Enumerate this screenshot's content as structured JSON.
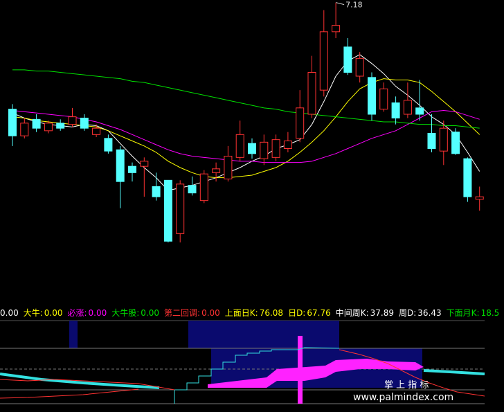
{
  "chart_data": {
    "type": "candlestick",
    "ylim": [
      4.8,
      7.2
    ],
    "up_color": "#ff3232",
    "down_color": "#54ffff",
    "candles": [
      {
        "open": 6.34,
        "close": 6.13,
        "high": 6.38,
        "low": 6.05
      },
      {
        "open": 6.13,
        "close": 6.23,
        "high": 6.27,
        "low": 6.11
      },
      {
        "open": 6.26,
        "close": 6.19,
        "high": 6.3,
        "low": 6.16
      },
      {
        "open": 6.17,
        "close": 6.23,
        "high": 6.25,
        "low": 6.15
      },
      {
        "open": 6.23,
        "close": 6.19,
        "high": 6.26,
        "low": 6.17
      },
      {
        "open": 6.22,
        "close": 6.28,
        "high": 6.35,
        "low": 6.2
      },
      {
        "open": 6.27,
        "close": 6.19,
        "high": 6.3,
        "low": 6.17
      },
      {
        "open": 6.14,
        "close": 6.19,
        "high": 6.22,
        "low": 6.12
      },
      {
        "open": 6.11,
        "close": 6.01,
        "high": 6.14,
        "low": 5.99
      },
      {
        "open": 6.02,
        "close": 5.77,
        "high": 6.05,
        "low": 5.56
      },
      {
        "open": 5.89,
        "close": 5.84,
        "high": 5.92,
        "low": 5.77
      },
      {
        "open": 5.89,
        "close": 5.93,
        "high": 5.96,
        "low": 5.65
      },
      {
        "open": 5.73,
        "close": 5.65,
        "high": 5.84,
        "low": 5.62
      },
      {
        "open": 5.78,
        "close": 5.3,
        "high": 5.78,
        "low": 5.29
      },
      {
        "open": 5.36,
        "close": 5.75,
        "high": 5.78,
        "low": 5.29
      },
      {
        "open": 5.74,
        "close": 5.68,
        "high": 5.81,
        "low": 5.66
      },
      {
        "open": 5.62,
        "close": 5.83,
        "high": 5.86,
        "low": 5.6
      },
      {
        "open": 5.84,
        "close": 5.87,
        "high": 5.92,
        "low": 5.77
      },
      {
        "open": 5.79,
        "close": 5.97,
        "high": 6.05,
        "low": 5.77
      },
      {
        "open": 5.96,
        "close": 6.14,
        "high": 6.25,
        "low": 5.93
      },
      {
        "open": 6.07,
        "close": 5.99,
        "high": 6.11,
        "low": 5.95
      },
      {
        "open": 5.95,
        "close": 6.08,
        "high": 6.14,
        "low": 5.9
      },
      {
        "open": 5.96,
        "close": 6.1,
        "high": 6.14,
        "low": 5.93
      },
      {
        "open": 6.03,
        "close": 6.09,
        "high": 6.16,
        "low": 6.0
      },
      {
        "open": 6.11,
        "close": 6.35,
        "high": 6.49,
        "low": 6.08
      },
      {
        "open": 6.3,
        "close": 6.63,
        "high": 6.76,
        "low": 6.27
      },
      {
        "open": 6.49,
        "close": 6.95,
        "high": 7.12,
        "low": 6.44
      },
      {
        "open": 6.95,
        "close": 7.0,
        "high": 7.18,
        "low": 6.9
      },
      {
        "open": 6.83,
        "close": 6.63,
        "high": 6.9,
        "low": 6.61
      },
      {
        "open": 6.6,
        "close": 6.74,
        "high": 6.79,
        "low": 6.55
      },
      {
        "open": 6.59,
        "close": 6.3,
        "high": 6.63,
        "low": 6.25
      },
      {
        "open": 6.34,
        "close": 6.5,
        "high": 6.55,
        "low": 6.32
      },
      {
        "open": 6.39,
        "close": 6.27,
        "high": 6.44,
        "low": 6.22
      },
      {
        "open": 6.3,
        "close": 6.41,
        "high": 6.55,
        "low": 6.27
      },
      {
        "open": 6.35,
        "close": 6.3,
        "high": 6.57,
        "low": 6.25
      },
      {
        "open": 6.15,
        "close": 6.03,
        "high": 6.3,
        "low": 6.0
      },
      {
        "open": 6.01,
        "close": 6.19,
        "high": 6.25,
        "low": 5.9
      },
      {
        "open": 6.16,
        "close": 5.99,
        "high": 6.19,
        "low": 5.98
      },
      {
        "open": 5.95,
        "close": 5.65,
        "high": 5.96,
        "low": 5.61
      },
      {
        "open": 5.63,
        "close": 5.65,
        "high": 5.73,
        "low": 5.54
      }
    ],
    "moving_averages": [
      {
        "color": "#ffffff",
        "values": [
          6.31,
          6.27,
          6.24,
          6.22,
          6.21,
          6.2,
          6.22,
          6.21,
          6.17,
          6.07,
          5.97,
          5.88,
          5.8,
          5.7,
          5.72,
          5.74,
          5.77,
          5.8,
          5.84,
          5.88,
          5.93,
          5.97,
          6.03,
          6.06,
          6.1,
          6.22,
          6.4,
          6.6,
          6.72,
          6.77,
          6.7,
          6.62,
          6.52,
          6.45,
          6.37,
          6.28,
          6.22,
          6.14,
          6.0,
          5.85
        ]
      },
      {
        "color": "#ffff00",
        "values": [
          6.28,
          6.27,
          6.25,
          6.24,
          6.23,
          6.22,
          6.21,
          6.2,
          6.17,
          6.13,
          6.09,
          6.05,
          6.0,
          5.93,
          5.88,
          5.84,
          5.81,
          5.8,
          5.8,
          5.81,
          5.82,
          5.85,
          5.88,
          5.93,
          6.0,
          6.08,
          6.17,
          6.28,
          6.4,
          6.5,
          6.55,
          6.58,
          6.57,
          6.57,
          6.55,
          6.48,
          6.4,
          6.32,
          6.23,
          6.14
        ]
      },
      {
        "color": "#ff00ff",
        "values": [
          6.33,
          6.32,
          6.31,
          6.3,
          6.29,
          6.28,
          6.26,
          6.24,
          6.21,
          6.18,
          6.14,
          6.1,
          6.06,
          6.02,
          5.99,
          5.97,
          5.96,
          5.95,
          5.94,
          5.93,
          5.93,
          5.92,
          5.92,
          5.92,
          5.92,
          5.93,
          5.96,
          5.99,
          6.03,
          6.07,
          6.11,
          6.14,
          6.17,
          6.22,
          6.27,
          6.32,
          6.33,
          6.32,
          6.29,
          6.26
        ]
      },
      {
        "color": "#00e000",
        "values": [
          6.65,
          6.65,
          6.64,
          6.64,
          6.63,
          6.62,
          6.61,
          6.6,
          6.59,
          6.58,
          6.56,
          6.55,
          6.53,
          6.51,
          6.49,
          6.47,
          6.45,
          6.43,
          6.41,
          6.39,
          6.37,
          6.35,
          6.34,
          6.32,
          6.31,
          6.3,
          6.29,
          6.28,
          6.27,
          6.26,
          6.25,
          6.24,
          6.24,
          6.23,
          6.22,
          6.22,
          6.21,
          6.21,
          6.2,
          6.19
        ]
      }
    ],
    "indicator_legend": [
      {
        "value": "0.00",
        "color": "#ffffff"
      },
      {
        "label": "大牛:",
        "value": "0.00",
        "color": "#ffff00"
      },
      {
        "label": "必涨:",
        "value": "0.00",
        "color": "#ff00ff"
      },
      {
        "label": "大牛股:",
        "value": "0.00",
        "color": "#00e000"
      },
      {
        "label": "第二回调:",
        "value": "0.00",
        "color": "#ff3232"
      },
      {
        "label": "上面日K:",
        "value": "76.08",
        "color": "#ffff00"
      },
      {
        "label": "日D:",
        "value": "67.76",
        "color": "#ffff00"
      },
      {
        "label": "中间周K:",
        "value": "37.89",
        "color": "#ffffff"
      },
      {
        "label": "周D:",
        "value": "36.43",
        "color": "#ffffff"
      },
      {
        "label": "下面月K:",
        "value": "18.5",
        "color": "#00e000"
      }
    ],
    "watermark": {
      "title": "掌 上 指 标",
      "url": "www.palmindex.com"
    }
  }
}
